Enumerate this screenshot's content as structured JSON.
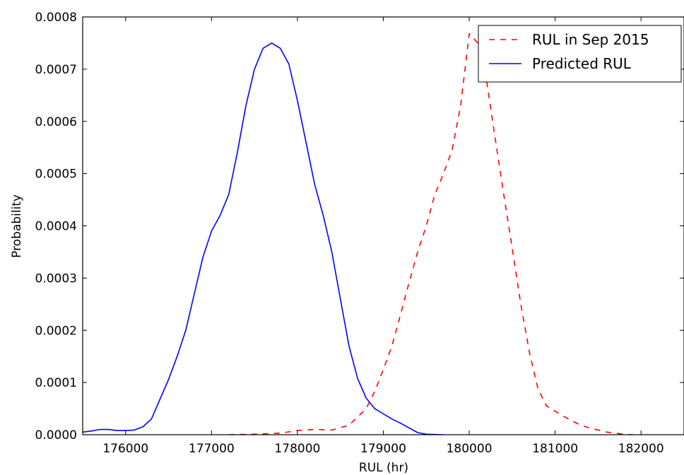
{
  "chart_data": {
    "type": "line",
    "title": "",
    "xlabel": "RUL (hr)",
    "ylabel": "Probability",
    "xlim": [
      175500,
      182500
    ],
    "ylim": [
      0,
      0.0008
    ],
    "xticks": [
      176000,
      177000,
      178000,
      179000,
      180000,
      181000,
      182000
    ],
    "yticks": [
      0.0,
      0.0001,
      0.0002,
      0.0003,
      0.0004,
      0.0005,
      0.0006,
      0.0007,
      0.0008
    ],
    "xtick_labels": [
      "176000",
      "177000",
      "178000",
      "179000",
      "180000",
      "181000",
      "182000"
    ],
    "ytick_labels": [
      "0.0000",
      "0.0001",
      "0.0002",
      "0.0003",
      "0.0004",
      "0.0005",
      "0.0006",
      "0.0007",
      "0.0008"
    ],
    "grid": false,
    "legend_position": "top-right",
    "series": [
      {
        "name": "RUL in Sep 2015",
        "color": "#ff0000",
        "style": "dashed",
        "points": [
          [
            177200,
            0.0
          ],
          [
            177500,
            1e-06
          ],
          [
            177800,
            3e-06
          ],
          [
            178000,
            8e-06
          ],
          [
            178200,
            1e-05
          ],
          [
            178400,
            9e-06
          ],
          [
            178600,
            1.8e-05
          ],
          [
            178800,
            5e-05
          ],
          [
            178900,
            8.3e-05
          ],
          [
            179000,
            0.000125
          ],
          [
            179100,
            0.00017
          ],
          [
            179200,
            0.00023
          ],
          [
            179300,
            0.000292
          ],
          [
            179400,
            0.00035
          ],
          [
            179500,
            0.0004
          ],
          [
            179600,
            0.00046
          ],
          [
            179700,
            0.0005
          ],
          [
            179800,
            0.000545
          ],
          [
            179900,
            0.00063
          ],
          [
            180000,
            0.000768
          ],
          [
            180100,
            0.00075
          ],
          [
            180200,
            0.00068
          ],
          [
            180300,
            0.00057
          ],
          [
            180400,
            0.000462
          ],
          [
            180500,
            0.000357
          ],
          [
            180600,
            0.00025
          ],
          [
            180700,
            0.000158
          ],
          [
            180800,
            8.8e-05
          ],
          [
            180900,
            5.5e-05
          ],
          [
            181000,
            4.5e-05
          ],
          [
            181100,
            3.5e-05
          ],
          [
            181200,
            2.6e-05
          ],
          [
            181300,
            1.8e-05
          ],
          [
            181400,
            1.3e-05
          ],
          [
            181500,
            9e-06
          ],
          [
            181600,
            5e-06
          ],
          [
            181700,
            3e-06
          ],
          [
            181800,
            1e-06
          ],
          [
            181900,
            0.0
          ],
          [
            182000,
            0.0
          ]
        ]
      },
      {
        "name": "Predicted RUL",
        "color": "#0000ff",
        "style": "solid",
        "points": [
          [
            175500,
            5e-06
          ],
          [
            175600,
            7e-06
          ],
          [
            175700,
            1e-05
          ],
          [
            175800,
            1e-05
          ],
          [
            175900,
            8e-06
          ],
          [
            176000,
            8e-06
          ],
          [
            176100,
            9e-06
          ],
          [
            176200,
            1.5e-05
          ],
          [
            176300,
            3e-05
          ],
          [
            176400,
            6.8e-05
          ],
          [
            176500,
            0.000106
          ],
          [
            176600,
            0.00015
          ],
          [
            176700,
            0.0002
          ],
          [
            176800,
            0.00027
          ],
          [
            176900,
            0.00034
          ],
          [
            177000,
            0.00039
          ],
          [
            177100,
            0.00042
          ],
          [
            177200,
            0.00046
          ],
          [
            177300,
            0.00054
          ],
          [
            177400,
            0.00063
          ],
          [
            177500,
            0.0007
          ],
          [
            177600,
            0.00074
          ],
          [
            177700,
            0.00075
          ],
          [
            177800,
            0.00074
          ],
          [
            177900,
            0.00071
          ],
          [
            178000,
            0.00064
          ],
          [
            178100,
            0.00056
          ],
          [
            178200,
            0.00048
          ],
          [
            178300,
            0.00042
          ],
          [
            178400,
            0.00035
          ],
          [
            178500,
            0.00026
          ],
          [
            178600,
            0.00017
          ],
          [
            178700,
            0.000108
          ],
          [
            178800,
            7e-05
          ],
          [
            178900,
            5e-05
          ],
          [
            179000,
            4e-05
          ],
          [
            179100,
            3e-05
          ],
          [
            179200,
            2.2e-05
          ],
          [
            179300,
            1.3e-05
          ],
          [
            179400,
            4e-06
          ],
          [
            179500,
            1e-06
          ],
          [
            179700,
            0.0
          ]
        ]
      }
    ]
  }
}
